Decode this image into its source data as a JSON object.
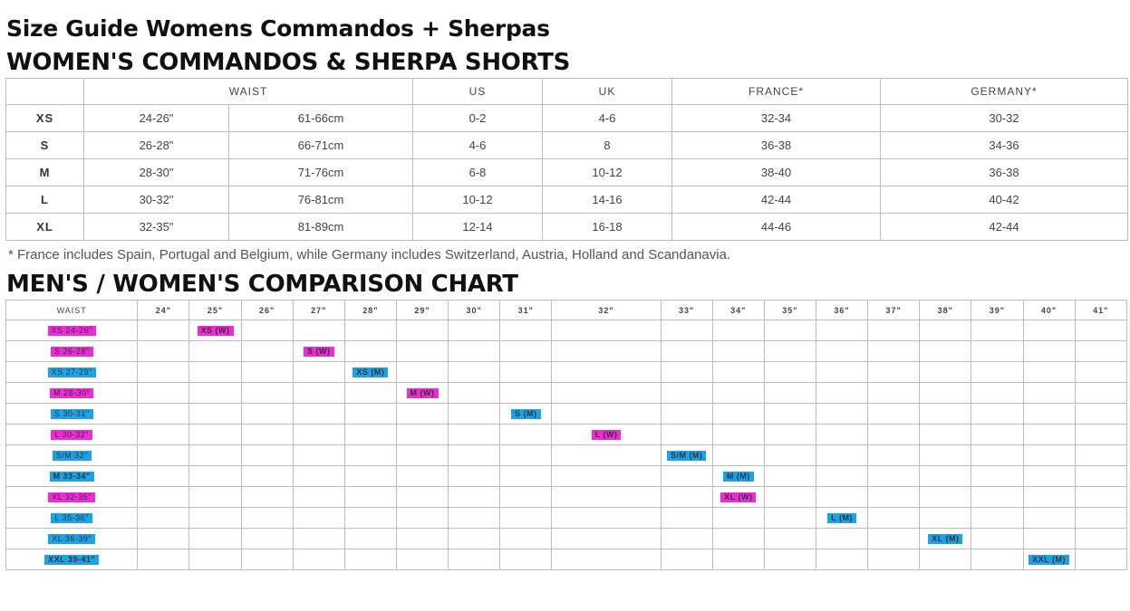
{
  "title": "Size Guide Womens Commandos + Sherpas",
  "shorts_heading": "WOMEN'S COMMANDOS & SHERPA SHORTS",
  "shorts_table": {
    "headers": [
      "WAIST",
      "US",
      "UK",
      "FRANCE*",
      "GERMANY*"
    ],
    "rows": [
      {
        "size": "XS",
        "waist_in": "24-26\"",
        "waist_cm": "61-66cm",
        "us": "0-2",
        "uk": "4-6",
        "france": "32-34",
        "germany": "30-32"
      },
      {
        "size": "S",
        "waist_in": "26-28\"",
        "waist_cm": "66-71cm",
        "us": "4-6",
        "uk": "8",
        "france": "36-38",
        "germany": "34-36"
      },
      {
        "size": "M",
        "waist_in": "28-30\"",
        "waist_cm": "71-76cm",
        "us": "6-8",
        "uk": "10-12",
        "france": "38-40",
        "germany": "36-38"
      },
      {
        "size": "L",
        "waist_in": "30-32\"",
        "waist_cm": "76-81cm",
        "us": "10-12",
        "uk": "14-16",
        "france": "42-44",
        "germany": "40-42"
      },
      {
        "size": "XL",
        "waist_in": "32-35\"",
        "waist_cm": "81-89cm",
        "us": "12-14",
        "uk": "16-18",
        "france": "44-46",
        "germany": "42-44"
      }
    ]
  },
  "footnote": "* France includes Spain, Portugal and Belgium, while Germany includes Switzerland, Austria, Holland and Scandanavia.",
  "comparison_heading": "MEN'S / WOMEN'S COMPARISON CHART",
  "comparison_table": {
    "waist_header": "WAIST",
    "columns": [
      "24\"",
      "25\"",
      "26\"",
      "27\"",
      "28\"",
      "29\"",
      "30\"",
      "31\"",
      "32\"",
      "33\"",
      "34\"",
      "35\"",
      "36\"",
      "37\"",
      "38\"",
      "39\"",
      "40\"",
      "41\""
    ],
    "rows": [
      {
        "waist": "XS 24-26\"",
        "gender": "W",
        "col": 1,
        "label": "XS (W)"
      },
      {
        "waist": "S 26-28\"",
        "gender": "W",
        "col": 3,
        "label": "S (W)"
      },
      {
        "waist": "XS 27-29\"",
        "gender": "M",
        "col": 4,
        "label": "XS (M)"
      },
      {
        "waist": "M 28-30\"",
        "gender": "W",
        "col": 5,
        "label": "M (W)"
      },
      {
        "waist": "S 30-31\"",
        "gender": "M",
        "col": 7,
        "label": "S (M)"
      },
      {
        "waist": "L 30-32\"",
        "gender": "W",
        "col": 8,
        "label": "L (W)"
      },
      {
        "waist": "S/M 32\"",
        "gender": "M",
        "col": 9,
        "label": "S/M (M)"
      },
      {
        "waist": "M 33-34\"",
        "gender": "M",
        "col": 10,
        "label": "M (M)"
      },
      {
        "waist": "XL 32-35\"",
        "gender": "W",
        "col": 10,
        "label": "XL (W)"
      },
      {
        "waist": "L 35-36\"",
        "gender": "M",
        "col": 12,
        "label": "L (M)"
      },
      {
        "waist": "XL 36-39\"",
        "gender": "M",
        "col": 14,
        "label": "XL (M)"
      },
      {
        "waist": "XXL 39-41\"",
        "gender": "M",
        "col": 16,
        "label": "XXL (M)"
      }
    ]
  },
  "colors": {
    "women": "#ee2bd6",
    "men": "#1aa3e8"
  }
}
